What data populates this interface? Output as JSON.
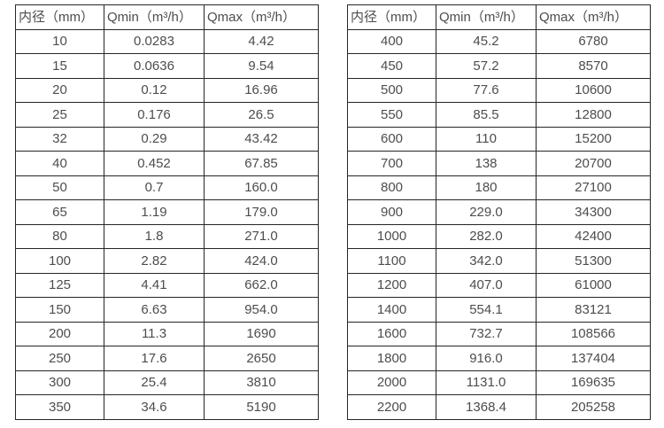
{
  "colors": {
    "text": "#4d4d4d",
    "border": "#262626",
    "background": "#ffffff"
  },
  "tables": [
    {
      "headers": [
        "内径（mm）",
        "Qmin（m³/h）",
        "Qmax（m³/h）"
      ],
      "rows": [
        [
          "10",
          "0.0283",
          "4.42"
        ],
        [
          "15",
          "0.0636",
          "9.54"
        ],
        [
          "20",
          "0.12",
          "16.96"
        ],
        [
          "25",
          "0.176",
          "26.5"
        ],
        [
          "32",
          "0.29",
          "43.42"
        ],
        [
          "40",
          "0.452",
          "67.85"
        ],
        [
          "50",
          "0.7",
          "160.0"
        ],
        [
          "65",
          "1.19",
          "179.0"
        ],
        [
          "80",
          "1.8",
          "271.0"
        ],
        [
          "100",
          "2.82",
          "424.0"
        ],
        [
          "125",
          "4.41",
          "662.0"
        ],
        [
          "150",
          "6.63",
          "954.0"
        ],
        [
          "200",
          "11.3",
          "1690"
        ],
        [
          "250",
          "17.6",
          "2650"
        ],
        [
          "300",
          "25.4",
          "3810"
        ],
        [
          "350",
          "34.6",
          "5190"
        ]
      ]
    },
    {
      "headers": [
        "内径（mm）",
        "Qmin（m³/h）",
        "Qmax（m³/h）"
      ],
      "rows": [
        [
          "400",
          "45.2",
          "6780"
        ],
        [
          "450",
          "57.2",
          "8570"
        ],
        [
          "500",
          "77.6",
          "10600"
        ],
        [
          "550",
          "85.5",
          "12800"
        ],
        [
          "600",
          "110",
          "15200"
        ],
        [
          "700",
          "138",
          "20700"
        ],
        [
          "800",
          "180",
          "27100"
        ],
        [
          "900",
          "229.0",
          "34300"
        ],
        [
          "1000",
          "282.0",
          "42400"
        ],
        [
          "1100",
          "342.0",
          "51300"
        ],
        [
          "1200",
          "407.0",
          "61000"
        ],
        [
          "1400",
          "554.1",
          "83121"
        ],
        [
          "1600",
          "732.7",
          "108566"
        ],
        [
          "1800",
          "916.0",
          "137404"
        ],
        [
          "2000",
          "1131.0",
          "169635"
        ],
        [
          "2200",
          "1368.4",
          "205258"
        ]
      ]
    }
  ]
}
